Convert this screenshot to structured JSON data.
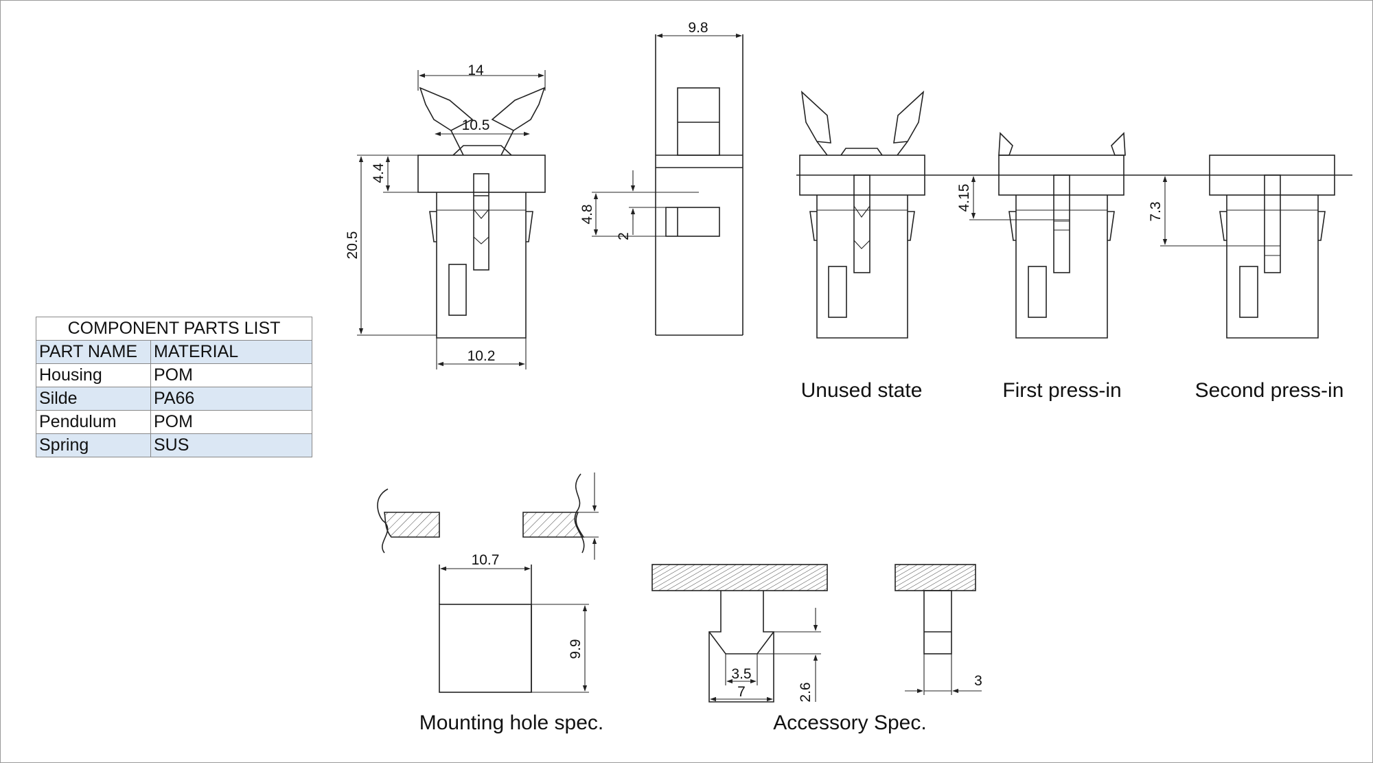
{
  "parts_list": {
    "title": "COMPONENT PARTS LIST",
    "headers": [
      "PART NAME",
      "MATERIAL"
    ],
    "rows": [
      {
        "part": "Housing",
        "material": "POM"
      },
      {
        "part": "Silde",
        "material": "PA66"
      },
      {
        "part": "Pendulum",
        "material": "POM"
      },
      {
        "part": "Spring",
        "material": "SUS"
      }
    ],
    "shade_color": "#dbe7f4"
  },
  "dimensions": {
    "front_top_width": "14",
    "front_inner_width": "10.5",
    "front_flange_height": "4.4",
    "front_total_height": "20.5",
    "front_body_width": "10.2",
    "side_width": "9.8",
    "side_slot_height": "4.8",
    "side_slot_gap": "2",
    "first_press_travel": "4.15",
    "second_press_travel": "7.3",
    "mounting_width": "10.7",
    "mounting_height": "9.9",
    "accessory_inner": "3.5",
    "accessory_outer": "7",
    "accessory_depth": "2.6",
    "accessory_pin": "3"
  },
  "captions": {
    "unused": "Unused state",
    "first_press": "First press-in",
    "second_press": "Second press-in",
    "mounting": "Mounting hole spec.",
    "accessory": "Accessory Spec."
  }
}
